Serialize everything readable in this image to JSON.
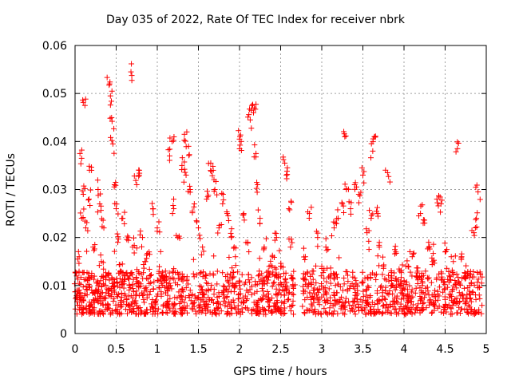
{
  "chart_data": {
    "type": "scatter",
    "title": "Day 035 of 2022, Rate Of TEC Index for receiver nbrk",
    "xlabel": "GPS time / hours",
    "ylabel": "ROTI / TECUs",
    "xlim": [
      0,
      5
    ],
    "ylim": [
      0,
      0.06
    ],
    "xticks": [
      0,
      0.5,
      1,
      1.5,
      2,
      2.5,
      3,
      3.5,
      4,
      4.5,
      5
    ],
    "xtick_labels": [
      "0",
      "0.5",
      "1",
      "1.5",
      "2",
      "2.5",
      "3",
      "3.5",
      "4",
      "4.5",
      "5"
    ],
    "yticks": [
      0,
      0.01,
      0.02,
      0.03,
      0.04,
      0.05,
      0.06
    ],
    "ytick_labels": [
      "0",
      "0.01",
      "0.02",
      "0.03",
      "0.04",
      "0.05",
      "0.06"
    ],
    "grid": true,
    "marker": "plus",
    "color": "#ff0000",
    "series": [
      {
        "name": "ROTI",
        "points": [
          [
            0.02,
            0.012
          ],
          [
            0.04,
            0.009
          ],
          [
            0.05,
            0.016
          ],
          [
            0.06,
            0.007
          ],
          [
            0.08,
            0.024
          ],
          [
            0.08,
            0.0365
          ],
          [
            0.1,
            0.029
          ],
          [
            0.12,
            0.0475
          ],
          [
            0.13,
            0.022
          ],
          [
            0.15,
            0.011
          ],
          [
            0.17,
            0.028
          ],
          [
            0.2,
            0.034
          ],
          [
            0.22,
            0.018
          ],
          [
            0.25,
            0.009
          ],
          [
            0.28,
            0.03
          ],
          [
            0.3,
            0.027
          ],
          [
            0.32,
            0.015
          ],
          [
            0.35,
            0.022
          ],
          [
            0.38,
            0.012
          ],
          [
            0.42,
            0.052
          ],
          [
            0.43,
            0.0495
          ],
          [
            0.45,
            0.0442
          ],
          [
            0.46,
            0.0395
          ],
          [
            0.48,
            0.031
          ],
          [
            0.5,
            0.026
          ],
          [
            0.52,
            0.019
          ],
          [
            0.55,
            0.013
          ],
          [
            0.58,
            0.024
          ],
          [
            0.6,
            0.012
          ],
          [
            0.65,
            0.02
          ],
          [
            0.68,
            0.0545
          ],
          [
            0.7,
            0.018
          ],
          [
            0.75,
            0.031
          ],
          [
            0.78,
            0.034
          ],
          [
            0.82,
            0.02
          ],
          [
            0.85,
            0.015
          ],
          [
            0.9,
            0.017
          ],
          [
            0.95,
            0.026
          ],
          [
            1.0,
            0.022
          ],
          [
            1.05,
            0.012
          ],
          [
            1.1,
            0.013
          ],
          [
            1.15,
            0.037
          ],
          [
            1.18,
            0.04
          ],
          [
            1.2,
            0.026
          ],
          [
            1.25,
            0.02
          ],
          [
            1.3,
            0.035
          ],
          [
            1.33,
            0.0415
          ],
          [
            1.35,
            0.033
          ],
          [
            1.38,
            0.039
          ],
          [
            1.4,
            0.03
          ],
          [
            1.45,
            0.027
          ],
          [
            1.5,
            0.022
          ],
          [
            1.55,
            0.018
          ],
          [
            1.6,
            0.028
          ],
          [
            1.65,
            0.0355
          ],
          [
            1.68,
            0.034
          ],
          [
            1.7,
            0.03
          ],
          [
            1.75,
            0.022
          ],
          [
            1.8,
            0.029
          ],
          [
            1.85,
            0.025
          ],
          [
            1.9,
            0.02
          ],
          [
            1.95,
            0.016
          ],
          [
            2.0,
            0.0405
          ],
          [
            2.02,
            0.04
          ],
          [
            2.05,
            0.025
          ],
          [
            2.1,
            0.019
          ],
          [
            2.13,
            0.0445
          ],
          [
            2.15,
            0.0475
          ],
          [
            2.17,
            0.046
          ],
          [
            2.2,
            0.0375
          ],
          [
            2.22,
            0.031
          ],
          [
            2.25,
            0.024
          ],
          [
            2.3,
            0.018
          ],
          [
            2.35,
            0.013
          ],
          [
            2.4,
            0.016
          ],
          [
            2.45,
            0.02
          ],
          [
            2.5,
            0.014
          ],
          [
            2.55,
            0.0355
          ],
          [
            2.57,
            0.033
          ],
          [
            2.6,
            0.026
          ],
          [
            2.62,
            0.018
          ],
          [
            2.65,
            0.01
          ],
          [
            2.8,
            0.016
          ],
          [
            2.85,
            0.025
          ],
          [
            2.9,
            0.013
          ],
          [
            2.95,
            0.02
          ],
          [
            3.0,
            0.014
          ],
          [
            3.05,
            0.018
          ],
          [
            3.1,
            0.012
          ],
          [
            3.15,
            0.022
          ],
          [
            3.2,
            0.024
          ],
          [
            3.25,
            0.027
          ],
          [
            3.28,
            0.041
          ],
          [
            3.3,
            0.03
          ],
          [
            3.35,
            0.026
          ],
          [
            3.4,
            0.031
          ],
          [
            3.45,
            0.029
          ],
          [
            3.5,
            0.033
          ],
          [
            3.55,
            0.021
          ],
          [
            3.6,
            0.024
          ],
          [
            3.62,
            0.038
          ],
          [
            3.64,
            0.041
          ],
          [
            3.68,
            0.025
          ],
          [
            3.7,
            0.018
          ],
          [
            3.75,
            0.014
          ],
          [
            3.8,
            0.0335
          ],
          [
            3.85,
            0.012
          ],
          [
            3.9,
            0.017
          ],
          [
            3.95,
            0.013
          ],
          [
            4.0,
            0.011
          ],
          [
            4.05,
            0.014
          ],
          [
            4.1,
            0.016
          ],
          [
            4.15,
            0.012
          ],
          [
            4.2,
            0.025
          ],
          [
            4.25,
            0.023
          ],
          [
            4.3,
            0.019
          ],
          [
            4.35,
            0.015
          ],
          [
            4.4,
            0.028
          ],
          [
            4.45,
            0.027
          ],
          [
            4.5,
            0.017
          ],
          [
            4.55,
            0.012
          ],
          [
            4.6,
            0.015
          ],
          [
            4.65,
            0.0385
          ],
          [
            4.7,
            0.016
          ],
          [
            4.75,
            0.012
          ],
          [
            4.8,
            0.01
          ],
          [
            4.85,
            0.021
          ],
          [
            4.88,
            0.024
          ],
          [
            4.9,
            0.0295
          ]
        ],
        "baseline_band": [
          0.004,
          0.013
        ],
        "band_note": "dense cluster of points between 0.004 and 0.013 across 0–2.65 h and 2.75–4.95 h"
      }
    ]
  }
}
